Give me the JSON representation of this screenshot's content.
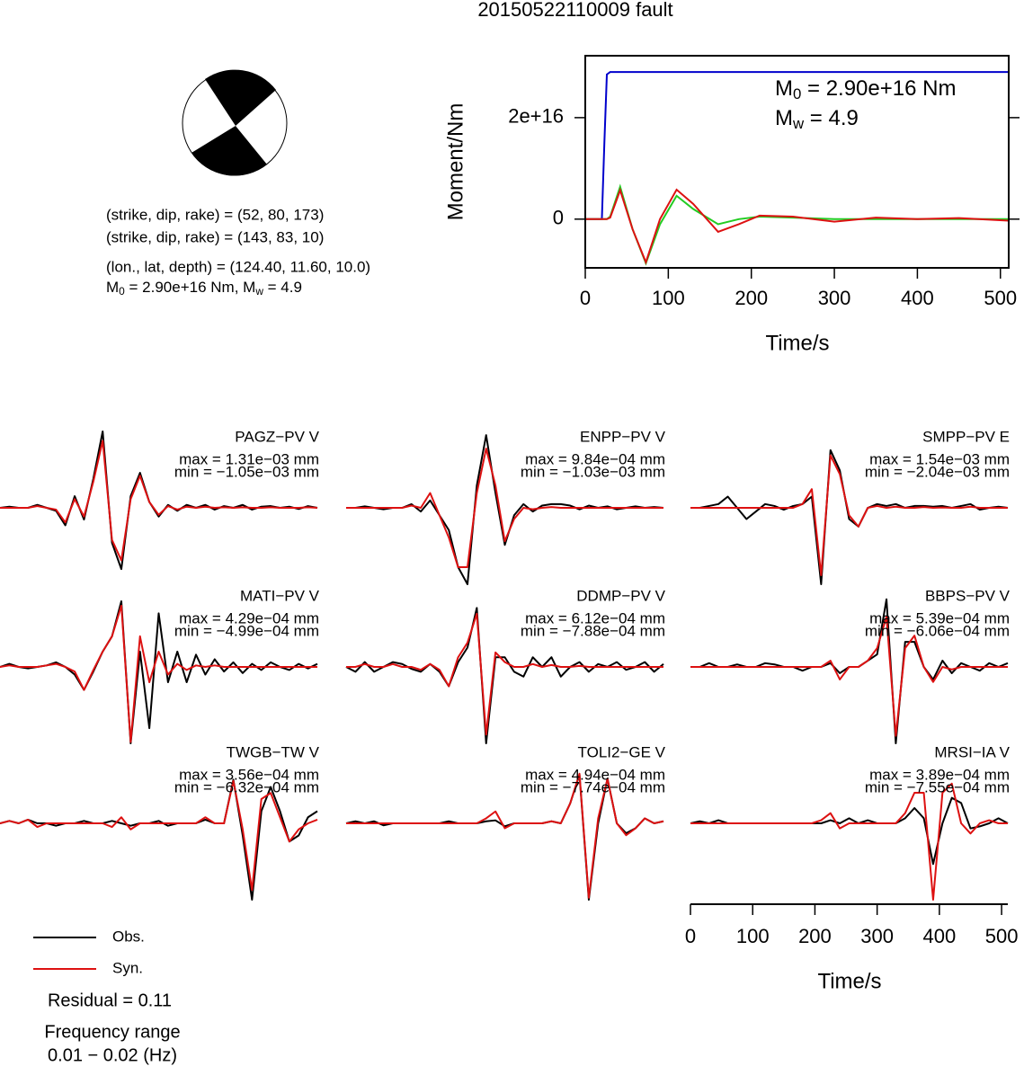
{
  "title": "20150522110009 fault",
  "mechanism": {
    "lines": [
      "(strike, dip, rake) = (52, 80, 173)",
      "(strike, dip, rake) = (143, 83, 10)",
      "(lon., lat, depth) = (124.40, 11.60, 10.0)"
    ],
    "moment_line": [
      "M",
      "0",
      " = 2.90e+16 Nm, M",
      "w",
      " = 4.9"
    ]
  },
  "residual": "Residual = 0.11",
  "frequency_title": "Frequency range",
  "frequency_range": "0.01 − 0.02 (Hz)",
  "chart_data": [
    {
      "type": "line",
      "ylabel": "Moment/Nm",
      "xlabel": "Time/s",
      "annotations": [
        [
          "M",
          "0",
          " = 2.90e+16 Nm"
        ],
        [
          "M",
          "w",
          " = 4.9"
        ]
      ],
      "xlim": [
        0,
        510
      ],
      "xticks": [
        0,
        100,
        200,
        300,
        400,
        500
      ],
      "ylim": [
        -9600000000000000.0,
        3.22e+16
      ],
      "yticks": [
        0,
        {
          "value": 2e+16,
          "label": "2e+16"
        }
      ],
      "x": [
        0,
        20,
        23,
        26,
        30,
        42,
        57,
        73,
        90,
        110,
        130,
        160,
        185,
        210,
        250,
        300,
        350,
        400,
        450,
        510
      ],
      "series": [
        {
          "color": "#0000cc",
          "values": [
            0,
            0,
            1.5e+16,
            2.85e+16,
            2.9e+16,
            2.9e+16,
            2.9e+16,
            2.9e+16,
            2.9e+16,
            2.9e+16,
            2.9e+16,
            2.9e+16,
            2.9e+16,
            2.9e+16,
            2.9e+16,
            2.9e+16,
            2.9e+16,
            2.9e+16,
            2.9e+16,
            2.9e+16
          ]
        },
        {
          "color": "#22cc22",
          "values": [
            0,
            0,
            0,
            0,
            500000000000000.0,
            6400000000000000.0,
            -2000000000000000.0,
            -8700000000000000.0,
            -1000000000000000.0,
            4600000000000000.0,
            2000000000000000.0,
            -1000000000000000.0,
            0,
            500000000000000.0,
            300000000000000.0,
            0,
            0,
            0,
            0,
            0
          ]
        },
        {
          "color": "#dd1111",
          "values": [
            0,
            0,
            0,
            0,
            300000000000000.0,
            5700000000000000.0,
            -2000000000000000.0,
            -8500000000000000.0,
            0,
            5800000000000000.0,
            3000000000000000.0,
            -2500000000000000.0,
            -1000000000000000.0,
            700000000000000.0,
            500000000000000.0,
            -500000000000000.0,
            300000000000000.0,
            0,
            200000000000000.0,
            -300000000000000.0
          ]
        }
      ]
    },
    {
      "type": "waveforms",
      "xlabel": "Time/s",
      "xlim": [
        0,
        510
      ],
      "xticks": [
        0,
        100,
        200,
        300,
        400,
        500
      ],
      "x": [
        0,
        15,
        30,
        45,
        60,
        75,
        90,
        105,
        120,
        135,
        150,
        165,
        180,
        195,
        210,
        225,
        240,
        255,
        270,
        285,
        300,
        315,
        330,
        345,
        360,
        375,
        390,
        405,
        420,
        435,
        450,
        465,
        480,
        495,
        510
      ],
      "series": [
        {
          "name": "Obs.",
          "color": "#000000"
        },
        {
          "name": "Syn.",
          "color": "#dd1111"
        }
      ],
      "panels": [
        {
          "title": "PAGZ−PV V",
          "max": "max = 1.31e−03 mm",
          "min": "min = −1.05e−03 mm",
          "values": [
            [
              0,
              2e-05,
              0,
              0,
              5e-05,
              0,
              -5e-05,
              -0.0003,
              0.0002,
              -0.0002,
              0.0005,
              0.00131,
              -0.0006,
              -0.00105,
              0.0002,
              0.0006,
              0.0001,
              -0.00015,
              5e-05,
              -5e-05,
              5e-05,
              0,
              5e-05,
              -3e-05,
              3e-05,
              0,
              5e-05,
              -3e-05,
              2e-05,
              3e-05,
              0,
              2e-05,
              -2e-05,
              3e-05,
              0
            ],
            [
              0,
              0,
              0,
              0,
              3e-05,
              0,
              -3e-05,
              -0.00025,
              0.00015,
              -0.00015,
              0.00045,
              0.00115,
              -0.00055,
              -0.0009,
              0.00015,
              0.00055,
              0.0001,
              -0.00012,
              3e-05,
              -3e-05,
              2e-05,
              0,
              2e-05,
              0,
              1e-05,
              0,
              1e-05,
              0,
              0,
              1e-05,
              0,
              0,
              0,
              1e-05,
              0
            ]
          ]
        },
        {
          "title": "ENPP−PV V",
          "max": "max = 9.84e−04 mm",
          "min": "min = −1.03e−03 mm",
          "values": [
            [
              0,
              0,
              2e-05,
              0,
              -2e-05,
              0,
              0,
              5e-05,
              -5e-05,
              0.0001,
              -0.0001,
              -0.0003,
              -0.0008,
              -0.00103,
              0.0003,
              0.00098,
              0.0002,
              -0.0005,
              -0.0001,
              5e-05,
              -5e-05,
              3e-05,
              5e-05,
              5e-05,
              3e-05,
              -2e-05,
              3e-05,
              0,
              2e-05,
              -2e-05,
              0,
              2e-05,
              0,
              1e-05,
              0
            ],
            [
              0,
              0,
              0,
              0,
              0,
              0,
              0,
              3e-05,
              0,
              0.0002,
              -0.0001,
              -0.0004,
              -0.0008,
              -0.0008,
              0.0002,
              0.0008,
              0.0003,
              -0.00045,
              -0.00015,
              0,
              -2e-05,
              0,
              1e-05,
              0,
              0,
              0,
              0,
              0,
              0,
              0,
              0,
              0,
              0,
              0,
              0
            ]
          ]
        },
        {
          "title": "SMPP−PV E",
          "max": "max = 1.54e−03 mm",
          "min": "min = −2.04e−03 mm",
          "values": [
            [
              0,
              0,
              5e-05,
              0.0001,
              0.0003,
              0,
              -0.0003,
              -0.0001,
              0.0001,
              5e-05,
              -5e-05,
              5e-05,
              0.0001,
              0.0003,
              -0.00204,
              0.00154,
              0.001,
              -0.0003,
              -0.0005,
              0,
              0.0001,
              5e-05,
              0.0001,
              0,
              5e-05,
              5e-05,
              3e-05,
              5e-05,
              0,
              5e-05,
              0.0001,
              -5e-05,
              0,
              3e-05,
              0
            ],
            [
              0,
              0,
              0,
              0,
              0,
              0,
              0,
              0,
              0,
              0,
              0,
              0,
              0.0001,
              0.0005,
              -0.0018,
              0.0014,
              0.0009,
              -0.0002,
              -0.0005,
              0,
              5e-05,
              0,
              3e-05,
              0,
              0,
              2e-05,
              0,
              1e-05,
              0,
              0,
              3e-05,
              0,
              0,
              0,
              0
            ]
          ]
        },
        {
          "title": "MATI−PV V",
          "max": "max = 4.29e−04 mm",
          "min": "min = −4.99e−04 mm",
          "values": [
            [
              0,
              2e-05,
              0,
              -1e-05,
              0,
              1e-05,
              3e-05,
              0,
              -5e-05,
              -0.00015,
              -3e-05,
              0.0001,
              0.0002,
              0.000429,
              -0.000499,
              0.0001,
              -0.0004,
              0.00035,
              -0.0001,
              0.0001,
              -0.0001,
              8e-05,
              -5e-05,
              5e-05,
              -3e-05,
              3e-05,
              -4e-05,
              2e-05,
              -2e-05,
              3e-05,
              0,
              -2e-05,
              2e-05,
              -1e-05,
              2e-05
            ],
            [
              0,
              1e-05,
              0,
              0,
              0,
              1e-05,
              2e-05,
              0,
              -3e-05,
              -0.00015,
              -2e-05,
              0.0001,
              0.0002,
              0.0004,
              -0.00049,
              0.0002,
              -0.0001,
              0.0001,
              -5e-05,
              2e-05,
              -2e-05,
              1e-05,
              0,
              1e-05,
              0,
              0,
              0,
              0,
              0,
              0,
              0,
              0,
              0,
              0,
              0
            ]
          ]
        },
        {
          "title": "DDMP−PV V",
          "max": "max = 6.12e−04 mm",
          "min": "min = −7.88e−04 mm",
          "values": [
            [
              0,
              -5e-05,
              5e-05,
              -5e-05,
              0,
              5e-05,
              3e-05,
              -2e-05,
              -5e-05,
              3e-05,
              -5e-05,
              -0.0002,
              5e-05,
              0.0002,
              0.00061,
              -0.00079,
              0.0001,
              0.0001,
              -5e-05,
              -0.0001,
              0.0001,
              0,
              0.0001,
              -0.0001,
              0,
              5e-05,
              -5e-05,
              3e-05,
              0,
              5e-05,
              -3e-05,
              0,
              5e-05,
              -5e-05,
              3e-05
            ],
            [
              0,
              0,
              3e-05,
              0,
              0,
              3e-05,
              0,
              0,
              -3e-05,
              3e-05,
              -3e-05,
              -0.0002,
              0.0001,
              0.00025,
              0.00055,
              -0.0007,
              0.00015,
              5e-05,
              0,
              0,
              3e-05,
              0,
              2e-05,
              0,
              0,
              1e-05,
              0,
              0,
              0,
              0,
              0,
              0,
              0,
              0,
              0
            ]
          ]
        },
        {
          "title": "BBPS−PV V",
          "max": "max = 5.39e−04 mm",
          "min": "min = −6.06e−04 mm",
          "values": [
            [
              0,
              0,
              3e-05,
              0,
              0,
              2e-05,
              0,
              0,
              3e-05,
              2e-05,
              0,
              0,
              -3e-05,
              0,
              0,
              3e-05,
              -5e-05,
              0,
              0,
              5e-05,
              0.0001,
              0.00054,
              -0.00061,
              0.0002,
              0.0002,
              0,
              -0.0001,
              5e-05,
              -5e-05,
              3e-05,
              0,
              -3e-05,
              3e-05,
              0,
              3e-05
            ],
            [
              0,
              0,
              0,
              0,
              0,
              0,
              0,
              0,
              0,
              0,
              0,
              0,
              0,
              0,
              0,
              5e-05,
              -0.0001,
              0,
              0,
              5e-05,
              0.00015,
              0.0004,
              -0.00055,
              0.00015,
              0.00025,
              0,
              -0.00012,
              0,
              -2e-05,
              0,
              0,
              0,
              0,
              0,
              0
            ]
          ]
        },
        {
          "title": "TWGB−TW V",
          "max": "max = 3.56e−04 mm",
          "min": "min = −6.32e−04 mm",
          "values": [
            [
              0,
              2e-05,
              0,
              3e-05,
              0,
              0,
              -2e-05,
              0,
              0,
              2e-05,
              0,
              0,
              2e-05,
              0,
              -2e-05,
              0,
              0,
              2e-05,
              -2e-05,
              0,
              0,
              0,
              3e-05,
              0,
              0,
              0.00036,
              -0.0001,
              -0.00063,
              0.0001,
              0.0003,
              0.0001,
              -0.00015,
              -0.0001,
              5e-05,
              0.0001
            ],
            [
              0,
              2e-05,
              0,
              3e-05,
              -3e-05,
              0,
              0,
              0,
              0,
              0,
              0,
              0,
              -3e-05,
              5e-05,
              -5e-05,
              0,
              0,
              0,
              0,
              0,
              0,
              0,
              5e-05,
              0,
              0,
              0.00035,
              -5e-05,
              -0.00055,
              0.0002,
              0.00025,
              5e-05,
              -0.00015,
              -5e-05,
              0,
              3e-05
            ]
          ]
        },
        {
          "title": "TOLI2−GE V",
          "max": "max = 4.94e−04 mm",
          "min": "min = −7.74e−04 mm",
          "values": [
            [
              0,
              2e-05,
              0,
              2e-05,
              -2e-05,
              0,
              0,
              0,
              0,
              0,
              0,
              2e-05,
              0,
              0,
              0,
              2e-05,
              3e-05,
              -3e-05,
              0,
              0,
              0,
              0,
              2e-05,
              0,
              0.0002,
              0.00049,
              -0.00077,
              0,
              0.00045,
              0,
              -0.0001,
              -5e-05,
              5e-05,
              0,
              2e-05
            ],
            [
              0,
              0,
              0,
              0,
              0,
              0,
              0,
              0,
              0,
              0,
              0,
              0,
              0,
              0,
              0,
              5e-05,
              0.00012,
              -5e-05,
              0,
              0,
              0,
              0,
              2e-05,
              0,
              0.0002,
              0.0005,
              -0.00075,
              5e-05,
              0.00045,
              0,
              -0.00012,
              -5e-05,
              5e-05,
              0,
              2e-05
            ]
          ]
        },
        {
          "title": "MRSI−IA V",
          "max": "max = 3.89e−04 mm",
          "min": "min = −7.55e−04 mm",
          "values": [
            [
              0,
              2e-05,
              0,
              3e-05,
              0,
              0,
              0,
              0,
              0,
              0,
              0,
              0,
              0,
              0,
              0,
              3e-05,
              0,
              5e-05,
              0,
              3e-05,
              0,
              0,
              0,
              5e-05,
              0.00015,
              5e-05,
              -0.0004,
              0,
              0.00025,
              0.0002,
              -5e-05,
              -3e-05,
              0,
              5e-05,
              0
            ],
            [
              0,
              0,
              0,
              0,
              0,
              0,
              0,
              0,
              0,
              0,
              0,
              0,
              0,
              0,
              3e-05,
              0.0001,
              -5e-05,
              0,
              0,
              0,
              0,
              0,
              0,
              0.0001,
              0.0003,
              0.0003,
              -0.00075,
              0.0003,
              0.00039,
              0,
              -0.0001,
              0,
              3e-05,
              0,
              0
            ]
          ]
        }
      ]
    }
  ]
}
